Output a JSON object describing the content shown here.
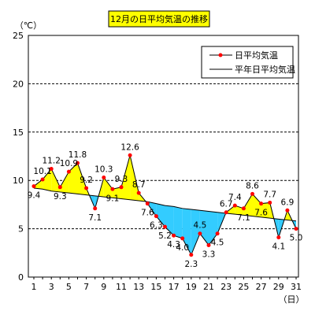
{
  "chart_data": {
    "type": "line",
    "title": "12月の日平均気温の推移",
    "ylabel": "（℃）",
    "xlabel": "（日）",
    "ylim": [
      0,
      25
    ],
    "y_ticks": [
      0,
      5,
      10,
      15,
      20,
      25
    ],
    "x": [
      1,
      2,
      3,
      4,
      5,
      6,
      7,
      8,
      9,
      10,
      11,
      12,
      13,
      14,
      15,
      16,
      17,
      18,
      19,
      20,
      21,
      22,
      23,
      24,
      25,
      26,
      27,
      28,
      29,
      30,
      31
    ],
    "x_tick_labels": [
      "1",
      "3",
      "5",
      "7",
      "9",
      "11",
      "13",
      "15",
      "17",
      "19",
      "21",
      "23",
      "25",
      "27",
      "29",
      "31"
    ],
    "grid": "horizontal-dashed",
    "legend_position": "top-right",
    "series": [
      {
        "name": "日平均気温",
        "values": [
          9.4,
          10.1,
          11.2,
          9.3,
          10.9,
          11.8,
          9.2,
          7.1,
          10.3,
          9.1,
          9.3,
          12.6,
          8.7,
          7.6,
          6.3,
          5.2,
          4.3,
          4.0,
          2.3,
          4.5,
          3.3,
          4.5,
          6.7,
          7.4,
          7.1,
          8.6,
          7.6,
          7.7,
          4.1,
          6.9,
          5.0
        ]
      },
      {
        "name": "平年日平均気温",
        "values": [
          9.2,
          9.1,
          8.9,
          8.8,
          8.7,
          8.6,
          8.5,
          8.4,
          8.3,
          8.2,
          8.1,
          8.0,
          7.9,
          7.8,
          7.6,
          7.4,
          7.3,
          7.1,
          7.0,
          6.9,
          6.8,
          6.7,
          6.6,
          6.5,
          6.4,
          6.3,
          6.2,
          6.1,
          6.0,
          5.9,
          5.8
        ]
      }
    ],
    "colors": {
      "above_normal_fill": "#ffff00",
      "below_normal_fill": "#33ccff",
      "line_color": "#000000",
      "marker_color": "#ff0000",
      "title_box_fill": "#ffff00",
      "grid_color": "#000000"
    }
  }
}
